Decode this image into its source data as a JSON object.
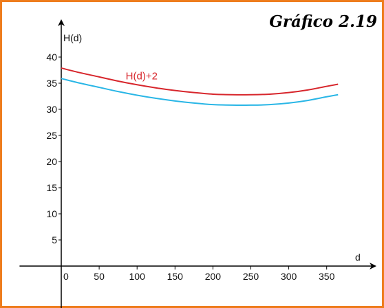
{
  "chart_data": {
    "type": "line",
    "title": "Gráfico 2.19",
    "xlabel": "d",
    "ylabel": "H(d)",
    "xlim": [
      -55,
      378
    ],
    "ylim": [
      -9,
      45
    ],
    "x_ticks": [
      0,
      50,
      100,
      150,
      200,
      250,
      300,
      350
    ],
    "x_tick_labels": [
      "0",
      "50",
      "100",
      "150",
      "200",
      "250",
      "300",
      "350"
    ],
    "y_ticks": [
      5,
      10,
      15,
      20,
      25,
      30,
      35,
      40
    ],
    "y_tick_labels": [
      "5",
      "10",
      "15",
      "20",
      "25",
      "30",
      "35",
      "40"
    ],
    "grid": false,
    "series": [
      {
        "name": "H(d)+2",
        "color": "#d7262c",
        "x": [
          0,
          25,
          50,
          75,
          100,
          125,
          150,
          175,
          200,
          225,
          250,
          275,
          300,
          325,
          350,
          365
        ],
        "y": [
          37.9,
          37.0,
          36.2,
          35.4,
          34.7,
          34.1,
          33.6,
          33.2,
          32.9,
          32.8,
          32.8,
          32.9,
          33.2,
          33.7,
          34.4,
          34.8
        ]
      },
      {
        "name": "",
        "color": "#29b6e6",
        "x": [
          0,
          25,
          50,
          75,
          100,
          125,
          150,
          175,
          200,
          225,
          250,
          275,
          300,
          325,
          350,
          365
        ],
        "y": [
          35.9,
          35.0,
          34.2,
          33.4,
          32.7,
          32.1,
          31.6,
          31.2,
          30.9,
          30.8,
          30.8,
          30.9,
          31.2,
          31.7,
          32.4,
          32.8
        ]
      }
    ]
  }
}
